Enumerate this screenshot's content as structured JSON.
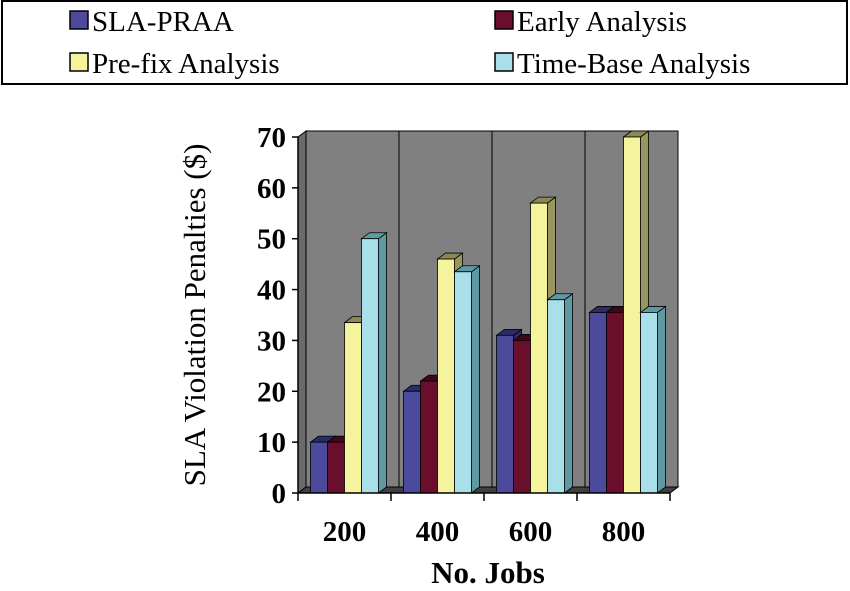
{
  "chart_data": {
    "type": "bar",
    "title": "",
    "xlabel": "No. Jobs",
    "ylabel": "SLA Violation Penalties ($)",
    "categories": [
      "200",
      "400",
      "600",
      "800"
    ],
    "ylim": [
      0,
      70
    ],
    "yticks": [
      "0",
      "10",
      "20",
      "30",
      "40",
      "50",
      "60",
      "70"
    ],
    "grid": false,
    "legend_position": "top",
    "series": [
      {
        "name": "SLA-PRAA",
        "values": [
          10,
          20,
          31,
          35.5
        ]
      },
      {
        "name": "Early Analysis",
        "values": [
          10,
          22,
          30,
          35.5
        ]
      },
      {
        "name": "Pre-fix Analysis",
        "values": [
          33.5,
          46,
          57,
          70
        ]
      },
      {
        "name": "Time-Base Analysis",
        "values": [
          50,
          43.5,
          38,
          35.5
        ]
      }
    ]
  },
  "colors": {
    "series_front": [
      "#4b4a9c",
      "#6a0f2b",
      "#f6f39e",
      "#a9dfe8"
    ],
    "series_side": [
      "#2c2b66",
      "#40061a",
      "#9a9660",
      "#5f9aa4"
    ],
    "series_top": [
      "#2c2b66",
      "#40061a",
      "#8c8852",
      "#5f9aa4"
    ],
    "plot_back": "#808080",
    "plot_wall": "#6a6a6a",
    "plot_floor": "#404040"
  }
}
